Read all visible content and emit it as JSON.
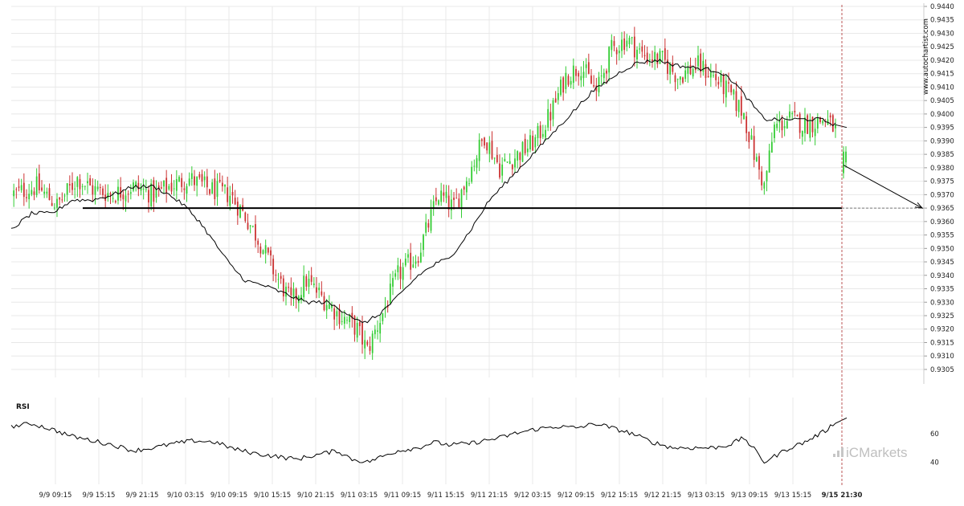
{
  "watermark": "www.autochartist.com",
  "brand": {
    "prefix": "iC",
    "name": "Markets"
  },
  "colors": {
    "up": "#33cc33",
    "down": "#cc3333",
    "line": "#000000",
    "grid": "#e8e8e8",
    "axis": "#cccccc"
  },
  "chart_data": [
    {
      "type": "candlestick",
      "title": "",
      "y_ticks": [
        "0.9305",
        "0.9310",
        "0.9315",
        "0.9320",
        "0.9325",
        "0.9330",
        "0.9335",
        "0.9340",
        "0.9345",
        "0.9350",
        "0.9355",
        "0.9360",
        "0.9365",
        "0.9370",
        "0.9375",
        "0.9380",
        "0.9385",
        "0.9390",
        "0.9395",
        "0.9400",
        "0.9405",
        "0.9410",
        "0.9415",
        "0.9420",
        "0.9425",
        "0.9430",
        "0.9435",
        "0.9440"
      ],
      "ylim": [
        0.9302,
        0.944
      ],
      "x_ticks": [
        "9/9 09:15",
        "9/9 15:15",
        "9/9 21:15",
        "9/10 03:15",
        "9/10 09:15",
        "9/10 15:15",
        "9/10 21:15",
        "9/11 03:15",
        "9/11 09:15",
        "9/11 15:15",
        "9/11 21:15",
        "9/12 03:15",
        "9/12 09:15",
        "9/12 15:15",
        "9/12 21:15",
        "9/13 03:15",
        "9/13 09:15",
        "9/13 15:15",
        "9/15 21:30"
      ],
      "close_path": [
        [
          0,
          0.937
        ],
        [
          10,
          0.9373
        ],
        [
          18,
          0.9366
        ],
        [
          26,
          0.9376
        ],
        [
          32,
          0.9372
        ],
        [
          40,
          0.937
        ],
        [
          48,
          0.9373
        ],
        [
          56,
          0.937
        ],
        [
          62,
          0.9373
        ],
        [
          70,
          0.9376
        ],
        [
          78,
          0.9372
        ],
        [
          86,
          0.937
        ],
        [
          92,
          0.9362
        ],
        [
          98,
          0.9352
        ],
        [
          104,
          0.934
        ],
        [
          110,
          0.933
        ],
        [
          116,
          0.9338
        ],
        [
          122,
          0.9332
        ],
        [
          128,
          0.9326
        ],
        [
          136,
          0.932
        ],
        [
          140,
          0.9312
        ],
        [
          146,
          0.9326
        ],
        [
          152,
          0.934
        ],
        [
          160,
          0.9348
        ],
        [
          168,
          0.937
        ],
        [
          174,
          0.9365
        ],
        [
          180,
          0.9378
        ],
        [
          186,
          0.9392
        ],
        [
          192,
          0.938
        ],
        [
          198,
          0.9384
        ],
        [
          206,
          0.939
        ],
        [
          212,
          0.94
        ],
        [
          218,
          0.9414
        ],
        [
          224,
          0.9418
        ],
        [
          230,
          0.9408
        ],
        [
          236,
          0.9424
        ],
        [
          242,
          0.9428
        ],
        [
          248,
          0.9422
        ],
        [
          256,
          0.942
        ],
        [
          262,
          0.9414
        ],
        [
          270,
          0.9418
        ],
        [
          276,
          0.9414
        ],
        [
          282,
          0.9408
        ],
        [
          288,
          0.94
        ],
        [
          292,
          0.9385
        ],
        [
          296,
          0.9373
        ],
        [
          300,
          0.9395
        ],
        [
          306,
          0.9398
        ],
        [
          312,
          0.9396
        ],
        [
          320,
          0.9398
        ],
        [
          324,
          0.9394
        ]
      ],
      "gap_candles": [
        [
          0.9378,
          0.9386,
          0.9376,
          0.9388
        ],
        [
          0.9382,
          0.9386,
          0.938,
          0.9388
        ]
      ],
      "ma_path": [
        [
          0,
          0.9357
        ],
        [
          8,
          0.9363
        ],
        [
          16,
          0.9363
        ],
        [
          24,
          0.9368
        ],
        [
          32,
          0.9368
        ],
        [
          40,
          0.937
        ],
        [
          48,
          0.9373
        ],
        [
          56,
          0.9373
        ],
        [
          62,
          0.937
        ],
        [
          68,
          0.9366
        ],
        [
          74,
          0.936
        ],
        [
          80,
          0.9352
        ],
        [
          86,
          0.9344
        ],
        [
          92,
          0.9338
        ],
        [
          100,
          0.9336
        ],
        [
          108,
          0.9333
        ],
        [
          116,
          0.933
        ],
        [
          124,
          0.933
        ],
        [
          132,
          0.9326
        ],
        [
          138,
          0.9322
        ],
        [
          144,
          0.9325
        ],
        [
          152,
          0.9332
        ],
        [
          160,
          0.934
        ],
        [
          168,
          0.9345
        ],
        [
          172,
          0.9346
        ],
        [
          180,
          0.9356
        ],
        [
          188,
          0.9368
        ],
        [
          196,
          0.9376
        ],
        [
          204,
          0.9384
        ],
        [
          210,
          0.939
        ],
        [
          216,
          0.9396
        ],
        [
          222,
          0.9402
        ],
        [
          228,
          0.9408
        ],
        [
          234,
          0.9412
        ],
        [
          240,
          0.9416
        ],
        [
          246,
          0.9419
        ],
        [
          254,
          0.942
        ],
        [
          262,
          0.9418
        ],
        [
          270,
          0.9417
        ],
        [
          278,
          0.9416
        ],
        [
          284,
          0.9412
        ],
        [
          290,
          0.9405
        ],
        [
          296,
          0.9398
        ],
        [
          302,
          0.9398
        ],
        [
          310,
          0.9398
        ],
        [
          318,
          0.9398
        ],
        [
          324,
          0.9396
        ]
      ],
      "support_level": 0.9365,
      "forecast": {
        "from_value": 0.9381,
        "to_value": 0.9365
      }
    },
    {
      "type": "line",
      "title": "RSI",
      "y_ticks": [
        "60",
        "40"
      ],
      "ylim": [
        30,
        74
      ],
      "values_path": [
        [
          0,
          65
        ],
        [
          8,
          67
        ],
        [
          16,
          63
        ],
        [
          24,
          58
        ],
        [
          32,
          55
        ],
        [
          40,
          52
        ],
        [
          48,
          48
        ],
        [
          56,
          50
        ],
        [
          64,
          53
        ],
        [
          72,
          55
        ],
        [
          80,
          54
        ],
        [
          88,
          49
        ],
        [
          96,
          46
        ],
        [
          104,
          44
        ],
        [
          112,
          42
        ],
        [
          120,
          45
        ],
        [
          128,
          48
        ],
        [
          134,
          42
        ],
        [
          140,
          40
        ],
        [
          146,
          44
        ],
        [
          152,
          48
        ],
        [
          160,
          50
        ],
        [
          166,
          54
        ],
        [
          172,
          52
        ],
        [
          180,
          53
        ],
        [
          186,
          55
        ],
        [
          192,
          57
        ],
        [
          198,
          60
        ],
        [
          206,
          63
        ],
        [
          214,
          65
        ],
        [
          222,
          64
        ],
        [
          230,
          67
        ],
        [
          236,
          64
        ],
        [
          244,
          60
        ],
        [
          252,
          54
        ],
        [
          260,
          50
        ],
        [
          268,
          50
        ],
        [
          276,
          50
        ],
        [
          282,
          52
        ],
        [
          288,
          57
        ],
        [
          292,
          49
        ],
        [
          296,
          40
        ],
        [
          300,
          44
        ],
        [
          306,
          50
        ],
        [
          312,
          54
        ],
        [
          320,
          62
        ],
        [
          324,
          68
        ]
      ]
    }
  ]
}
